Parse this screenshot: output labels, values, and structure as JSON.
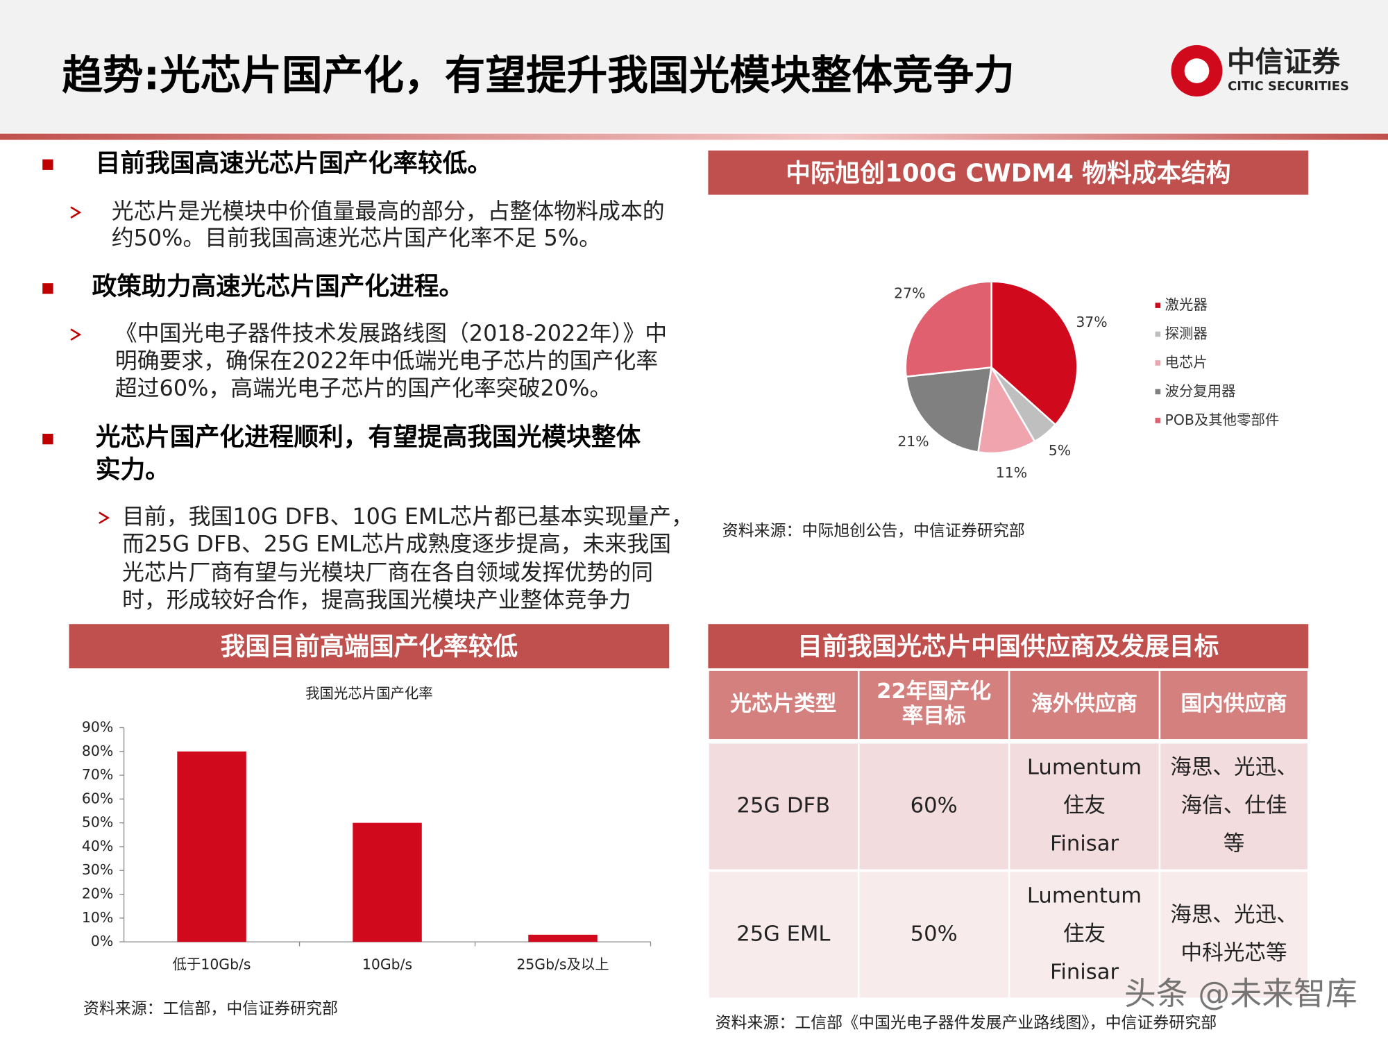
{
  "header": {
    "title": "趋势:光芯片国产化，有望提升我国光模块整体竞争力",
    "logo_cn": "中信证券",
    "logo_en": "CITIC SECURITIES"
  },
  "bullets": [
    {
      "title": [
        "目前我国高速光芯片国产化率较低。"
      ],
      "text": [
        "光芯片是光模块中价值量最高的部分，占整体物料成本的",
        "约50%。目前我国高速光芯片国产化率不足 5%。"
      ]
    },
    {
      "title": [
        "政策助力高速光芯片国产化进程。"
      ],
      "text": [
        "《中国光电子器件技术发展路线图（2018-2022年）》中",
        "明确要求，确保在2022年中低端光电子芯片的国产化率",
        "超过60%，高端光电子芯片的国产化率突破20%。"
      ]
    },
    {
      "title": [
        "光芯片国产化进程顺利，有望提高我国光模块整体",
        "实力。"
      ],
      "text": [
        "目前，我国10G DFB、10G EML芯片都已基本实现量产，",
        "而25G DFB、25G EML芯片成熟度逐步提高，未来我国",
        "光芯片厂商有望与光模块厂商在各自领域发挥优势的同",
        "时，形成较好合作，提高我国光模块产业整体竞争力"
      ]
    }
  ],
  "chart_data": [
    {
      "type": "pie",
      "panel_title": "中际旭创100G CWDM4 物料成本结构",
      "categories": [
        "激光器",
        "探测器",
        "电芯片",
        "波分复用器",
        "POB及其他零部件"
      ],
      "values": [
        37,
        5,
        11,
        21,
        27
      ],
      "value_labels": [
        "37%",
        "5%",
        "11%",
        "21%",
        "27%"
      ],
      "colors": [
        "#d0091c",
        "#bfbfbf",
        "#f0a5ae",
        "#808080",
        "#e0606f"
      ],
      "source": "资料来源：中际旭创公告，中信证券研究部"
    },
    {
      "type": "bar",
      "panel_title": "我国目前高端国产化率较低",
      "title": "我国光芯片国产化率",
      "categories": [
        "低于10Gb/s",
        "10Gb/s",
        "25Gb/s及以上"
      ],
      "values": [
        80,
        50,
        3
      ],
      "color": "#d0091c",
      "ylim": [
        0,
        90
      ],
      "yticks": [
        {
          "value": 0,
          "label": "0%"
        },
        {
          "value": 10,
          "label": "10%"
        },
        {
          "value": 20,
          "label": "20%"
        },
        {
          "value": 30,
          "label": "30%"
        },
        {
          "value": 40,
          "label": "40%"
        },
        {
          "value": 50,
          "label": "50%"
        },
        {
          "value": 60,
          "label": "60%"
        },
        {
          "value": 70,
          "label": "70%"
        },
        {
          "value": 80,
          "label": "80%"
        },
        {
          "value": 90,
          "label": "90%"
        }
      ],
      "source": "资料来源：工信部，中信证券研究部"
    }
  ],
  "table": {
    "panel_title": "目前我国光芯片中国供应商及发展目标",
    "header": [
      [
        "光芯片类型"
      ],
      [
        "22年国产化",
        "率目标"
      ],
      [
        "海外供应商"
      ],
      [
        "国内供应商"
      ]
    ],
    "rows": [
      [
        [
          "25G DFB"
        ],
        [
          "60%"
        ],
        [
          "Lumentum",
          "住友",
          "Finisar"
        ],
        [
          "海思、光迅、",
          "海信、仕佳",
          "等"
        ]
      ],
      [
        [
          "25G EML"
        ],
        [
          "50%"
        ],
        [
          "Lumentum",
          "住友",
          "Finisar"
        ],
        [
          "海思、光迅、",
          "中科光芯等"
        ]
      ]
    ],
    "source": "资料来源：工信部《中国光电子器件发展产业路线图》，中信证券研究部"
  },
  "watermark": "头条 @未来智库"
}
